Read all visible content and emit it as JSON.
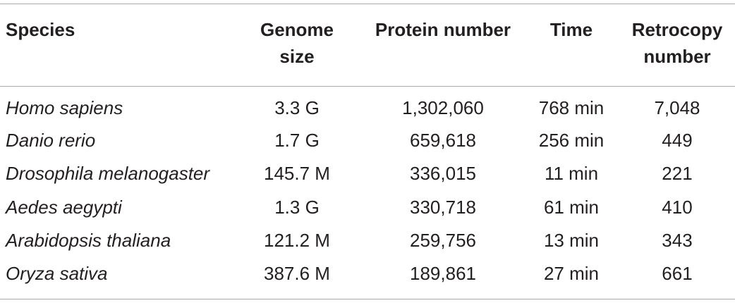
{
  "table": {
    "header": [
      "Species",
      "Genome size",
      "Protein number",
      "Time",
      "Retrocopy number"
    ],
    "rows": [
      [
        "Homo sapiens",
        "3.3 G",
        "1,302,060",
        "768 min",
        "7,048"
      ],
      [
        "Danio rerio",
        "1.7 G",
        "659,618",
        "256 min",
        "449"
      ],
      [
        "Drosophila melanogaster",
        "145.7 M",
        "336,015",
        "11 min",
        "221"
      ],
      [
        "Aedes aegypti",
        "1.3 G",
        "330,718",
        "61 min",
        "410"
      ],
      [
        "Arabidopsis thaliana",
        "121.2 M",
        "259,756",
        "13 min",
        "343"
      ],
      [
        "Oryza sativa",
        "387.6 M",
        "189,861",
        "27 min",
        "661"
      ]
    ]
  }
}
